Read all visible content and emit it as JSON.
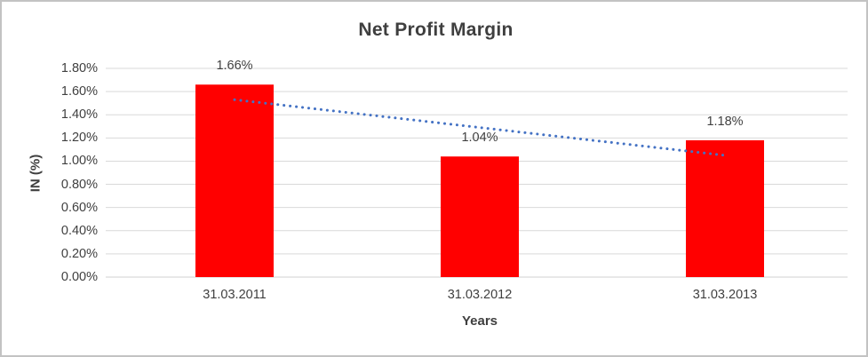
{
  "chart_data": {
    "type": "bar",
    "title": "Net Profit Margin",
    "xlabel": "Years",
    "ylabel": "IN (%)",
    "categories": [
      "31.03.2011",
      "31.03.2012",
      "31.03.2013"
    ],
    "values": [
      1.66,
      1.04,
      1.18
    ],
    "data_labels": [
      "1.66%",
      "1.04%",
      "1.18%"
    ],
    "ylim": [
      0,
      1.8
    ],
    "y_tick_step": 0.2,
    "y_tick_labels": [
      "0.00%",
      "0.20%",
      "0.40%",
      "0.60%",
      "0.80%",
      "1.00%",
      "1.20%",
      "1.40%",
      "1.60%",
      "1.80%"
    ],
    "grid": true,
    "legend": "none",
    "bar_color": "#ff0000",
    "gridline_color": "#d9d9d9",
    "axis_line_color": "#d0d0d0",
    "text_color": "#404040",
    "trendline": {
      "type": "linear",
      "style": "dotted",
      "color": "#4472c4",
      "start_value": 1.53,
      "end_value": 1.05
    }
  }
}
